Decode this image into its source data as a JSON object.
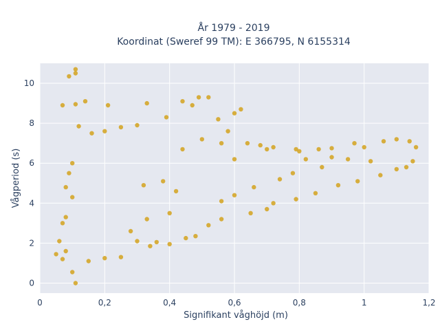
{
  "chart_data": {
    "type": "scatter",
    "title_line1": "År 1979 - 2019",
    "title_line2": "Koordinat (Sweref 99 TM): E 366795, N 6155314",
    "xlabel": "Signifikant våghöjd (m)",
    "ylabel": "Vågperiod (s)",
    "xlim": [
      0,
      1.2
    ],
    "ylim": [
      -0.5,
      11
    ],
    "x_ticks": [
      {
        "value": 0,
        "label": "0"
      },
      {
        "value": 0.2,
        "label": "0,2"
      },
      {
        "value": 0.4,
        "label": "0,4"
      },
      {
        "value": 0.6,
        "label": "0,6"
      },
      {
        "value": 0.8,
        "label": "0,8"
      },
      {
        "value": 1.0,
        "label": "1"
      },
      {
        "value": 1.2,
        "label": "1,2"
      }
    ],
    "y_ticks": [
      {
        "value": 0,
        "label": "0"
      },
      {
        "value": 2,
        "label": "2"
      },
      {
        "value": 4,
        "label": "4"
      },
      {
        "value": 6,
        "label": "6"
      },
      {
        "value": 8,
        "label": "8"
      },
      {
        "value": 10,
        "label": "10"
      }
    ],
    "grid": true,
    "marker_color": "#d4a21d",
    "background_color": "#e5e8f0",
    "series": [
      {
        "values": [
          [
            0.11,
            10.7
          ],
          [
            0.09,
            10.35
          ],
          [
            0.11,
            10.5
          ],
          [
            0.07,
            8.9
          ],
          [
            0.11,
            8.95
          ],
          [
            0.14,
            9.1
          ],
          [
            0.21,
            8.9
          ],
          [
            0.11,
            0.0
          ],
          [
            0.1,
            0.55
          ],
          [
            0.08,
            4.8
          ],
          [
            0.06,
            2.1
          ],
          [
            0.07,
            3.0
          ],
          [
            0.3,
            2.1
          ],
          [
            0.34,
            1.85
          ],
          [
            0.36,
            2.05
          ],
          [
            0.4,
            1.95
          ],
          [
            0.45,
            2.25
          ],
          [
            0.48,
            2.35
          ],
          [
            0.52,
            2.9
          ],
          [
            0.56,
            3.2
          ],
          [
            0.62,
            8.7
          ],
          [
            0.6,
            8.5
          ],
          [
            0.55,
            8.2
          ],
          [
            0.52,
            9.3
          ],
          [
            0.49,
            9.3
          ],
          [
            0.44,
            9.1
          ],
          [
            0.47,
            8.9
          ],
          [
            0.33,
            9.0
          ],
          [
            0.39,
            8.3
          ],
          [
            0.58,
            7.6
          ],
          [
            0.64,
            7.0
          ],
          [
            0.68,
            6.9
          ],
          [
            0.7,
            6.7
          ],
          [
            0.72,
            6.8
          ],
          [
            0.79,
            6.7
          ],
          [
            0.8,
            6.6
          ],
          [
            0.86,
            6.7
          ],
          [
            0.9,
            6.75
          ],
          [
            0.97,
            7.0
          ],
          [
            1.0,
            6.8
          ],
          [
            1.06,
            7.1
          ],
          [
            1.1,
            7.2
          ],
          [
            1.14,
            7.1
          ],
          [
            1.16,
            6.8
          ],
          [
            1.15,
            6.1
          ],
          [
            1.13,
            5.8
          ],
          [
            1.1,
            5.7
          ],
          [
            1.05,
            5.4
          ],
          [
            0.98,
            5.1
          ],
          [
            0.92,
            4.9
          ],
          [
            0.85,
            4.5
          ],
          [
            0.79,
            4.2
          ],
          [
            0.72,
            4.0
          ],
          [
            0.7,
            3.7
          ],
          [
            0.65,
            3.5
          ],
          [
            1.02,
            6.1
          ],
          [
            0.95,
            6.2
          ],
          [
            0.87,
            5.8
          ],
          [
            0.78,
            5.5
          ],
          [
            0.74,
            5.2
          ],
          [
            0.66,
            4.8
          ],
          [
            0.6,
            4.4
          ],
          [
            0.56,
            4.1
          ],
          [
            0.82,
            6.2
          ],
          [
            0.9,
            6.3
          ],
          [
            0.44,
            6.7
          ],
          [
            0.5,
            7.2
          ],
          [
            0.56,
            7.0
          ],
          [
            0.6,
            6.2
          ],
          [
            0.25,
            7.8
          ],
          [
            0.3,
            7.9
          ],
          [
            0.2,
            7.6
          ],
          [
            0.12,
            7.85
          ],
          [
            0.16,
            7.5
          ],
          [
            0.1,
            6.0
          ],
          [
            0.09,
            5.5
          ],
          [
            0.1,
            4.3
          ],
          [
            0.08,
            3.3
          ],
          [
            0.08,
            1.6
          ],
          [
            0.05,
            1.45
          ],
          [
            0.07,
            1.2
          ],
          [
            0.15,
            1.1
          ],
          [
            0.25,
            1.3
          ],
          [
            0.2,
            1.25
          ],
          [
            0.4,
            3.5
          ],
          [
            0.33,
            3.2
          ],
          [
            0.28,
            2.6
          ],
          [
            0.42,
            4.6
          ],
          [
            0.38,
            5.1
          ],
          [
            0.32,
            4.9
          ]
        ]
      }
    ]
  }
}
